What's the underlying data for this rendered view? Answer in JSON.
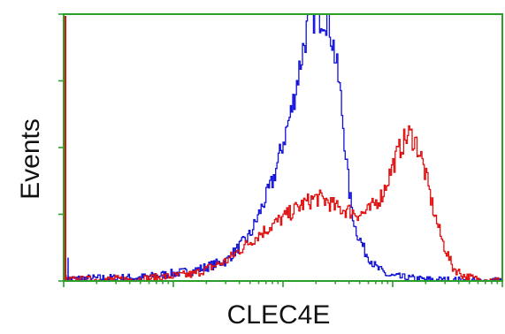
{
  "chart_data": {
    "type": "line",
    "title": "",
    "xlabel": "CLEC4E",
    "ylabel": "Events",
    "x_scale": "log",
    "xlim": [
      1,
      10000
    ],
    "ylim": [
      0,
      4
    ],
    "grid": false,
    "legend": "none",
    "frame_color": "#2aa02a",
    "y_ticks": [
      0,
      1,
      2,
      3,
      4
    ],
    "x_major_ticks": [
      1,
      10,
      100,
      1000,
      10000
    ],
    "series": [
      {
        "color": "#1010d8",
        "x": [
          1,
          5,
          15,
          30,
          50,
          80,
          100,
          120,
          140,
          160,
          180,
          200,
          220,
          240,
          260,
          280,
          300,
          330,
          360,
          400,
          450,
          550,
          700,
          900,
          1200,
          1800,
          3000,
          5000,
          10000
        ],
        "y": [
          0.03,
          0.05,
          0.15,
          0.3,
          0.7,
          1.5,
          2.1,
          2.6,
          3.2,
          3.7,
          4.0,
          4.0,
          4.0,
          4.0,
          3.9,
          3.6,
          3.3,
          2.8,
          2.1,
          1.3,
          0.8,
          0.45,
          0.2,
          0.08,
          0.05,
          0.02,
          0.01,
          0.0,
          0.0
        ]
      },
      {
        "color": "#e01010",
        "x": [
          1,
          5,
          15,
          30,
          60,
          100,
          150,
          200,
          250,
          300,
          400,
          500,
          600,
          800,
          1000,
          1200,
          1400,
          1600,
          1800,
          2000,
          2300,
          2800,
          3500,
          4500,
          6000,
          10000
        ],
        "y": [
          0.01,
          0.03,
          0.1,
          0.3,
          0.7,
          0.95,
          1.15,
          1.25,
          1.2,
          1.1,
          1.05,
          1.0,
          1.05,
          1.3,
          1.75,
          2.05,
          2.2,
          2.1,
          1.85,
          1.55,
          1.1,
          0.6,
          0.2,
          0.07,
          0.02,
          0.0
        ]
      }
    ]
  }
}
